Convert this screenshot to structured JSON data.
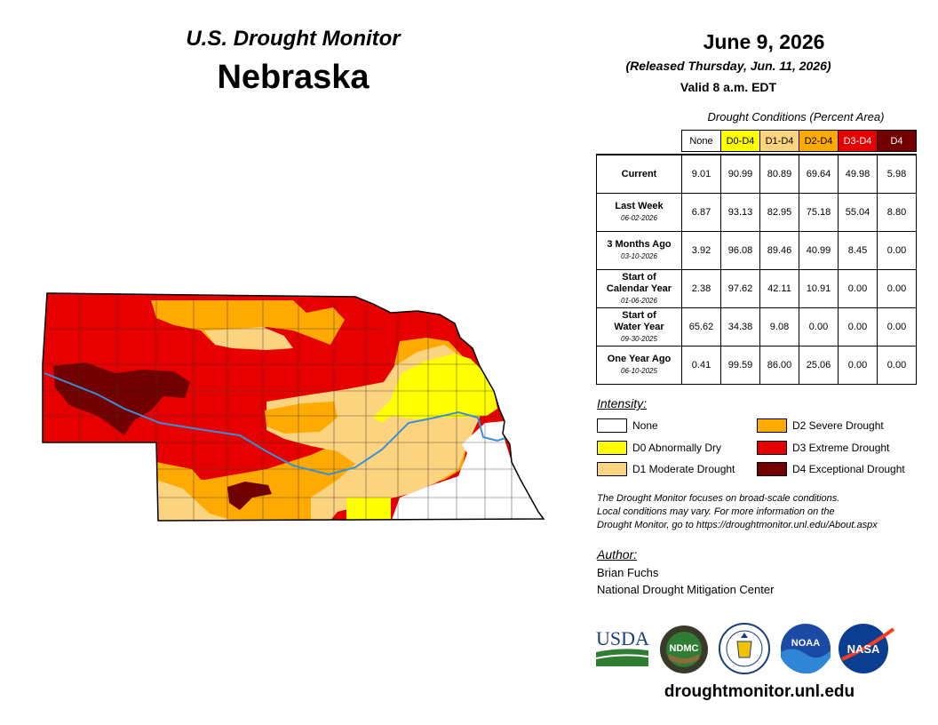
{
  "header": {
    "subtitle": "U.S. Drought Monitor",
    "state": "Nebraska",
    "date": "June 9, 2026",
    "released": "(Released Thursday, Jun. 11, 2026)",
    "valid": "Valid 8 a.m. EDT"
  },
  "table": {
    "caption": "Drought Conditions (Percent Area)",
    "columns": [
      {
        "label": "None",
        "color": "#ffffff",
        "text": "#000000"
      },
      {
        "label": "D0-D4",
        "color": "#ffff00",
        "text": "#000000"
      },
      {
        "label": "D1-D4",
        "color": "#fcd37f",
        "text": "#000000"
      },
      {
        "label": "D2-D4",
        "color": "#ffaa00",
        "text": "#000000"
      },
      {
        "label": "D3-D4",
        "color": "#e60000",
        "text": "#ffffff"
      },
      {
        "label": "D4",
        "color": "#730000",
        "text": "#ffffff"
      }
    ],
    "rows": [
      {
        "label1": "Current",
        "label2": "",
        "date": "",
        "values": [
          "9.01",
          "90.99",
          "80.89",
          "69.64",
          "49.98",
          "5.98"
        ]
      },
      {
        "label1": "Last Week",
        "label2": "",
        "date": "06-02-2026",
        "values": [
          "6.87",
          "93.13",
          "82.95",
          "75.18",
          "55.04",
          "8.80"
        ]
      },
      {
        "label1": "3 Months Ago",
        "label2": "",
        "date": "03-10-2026",
        "values": [
          "3.92",
          "96.08",
          "89.46",
          "40.99",
          "8.45",
          "0.00"
        ]
      },
      {
        "label1": "Start of",
        "label2": "Calendar Year",
        "date": "01-06-2026",
        "values": [
          "2.38",
          "97.62",
          "42.11",
          "10.91",
          "0.00",
          "0.00"
        ]
      },
      {
        "label1": "Start of",
        "label2": "Water Year",
        "date": "09-30-2025",
        "values": [
          "65.62",
          "34.38",
          "9.08",
          "0.00",
          "0.00",
          "0.00"
        ]
      },
      {
        "label1": "One Year Ago",
        "label2": "",
        "date": "06-10-2025",
        "values": [
          "0.41",
          "99.59",
          "86.00",
          "25.06",
          "0.00",
          "0.00"
        ]
      }
    ]
  },
  "legend": {
    "title": "Intensity:",
    "items": [
      {
        "label": "None",
        "color": "#ffffff"
      },
      {
        "label": "D0 Abnormally Dry",
        "color": "#ffff00"
      },
      {
        "label": "D1 Moderate Drought",
        "color": "#fcd37f"
      },
      {
        "label": "D2 Severe Drought",
        "color": "#ffaa00"
      },
      {
        "label": "D3 Extreme Drought",
        "color": "#e60000"
      },
      {
        "label": "D4 Exceptional Drought",
        "color": "#730000"
      }
    ]
  },
  "note": {
    "line1": "The Drought Monitor focuses on broad-scale conditions.",
    "line2": "Local conditions may vary. For more information on the",
    "line3": "Drought Monitor, go to https://droughtmonitor.unl.edu/About.aspx"
  },
  "author": {
    "title": "Author:",
    "name": "Brian Fuchs",
    "org": "National Drought Mitigation Center"
  },
  "logos": {
    "usda": "USDA",
    "ndmc": "NDMC",
    "noaa": "NOAA",
    "nasa": "NASA"
  },
  "url": "droughtmonitor.unl.edu",
  "map": {
    "river_color": "#3b8fd9"
  }
}
